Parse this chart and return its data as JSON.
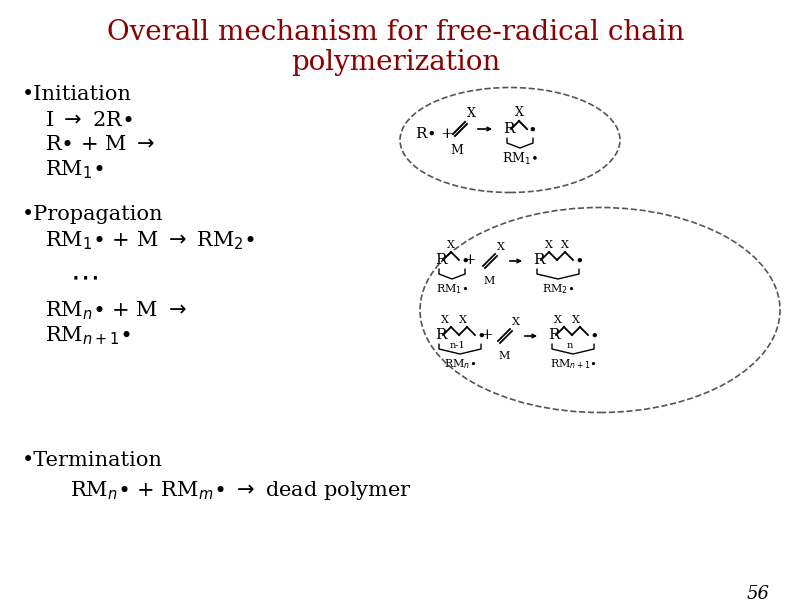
{
  "title_line1": "Overall mechanism for free-radical chain",
  "title_line2": "polymerization",
  "title_color": "#8B0000",
  "title_fontsize": 20,
  "bg_color": "#FFFFFF",
  "text_color": "#000000",
  "bullet_fontsize": 15,
  "equation_fontsize": 15,
  "small_fontsize": 11,
  "page_number": "56",
  "fig_w": 7.92,
  "fig_h": 6.12,
  "dpi": 100
}
